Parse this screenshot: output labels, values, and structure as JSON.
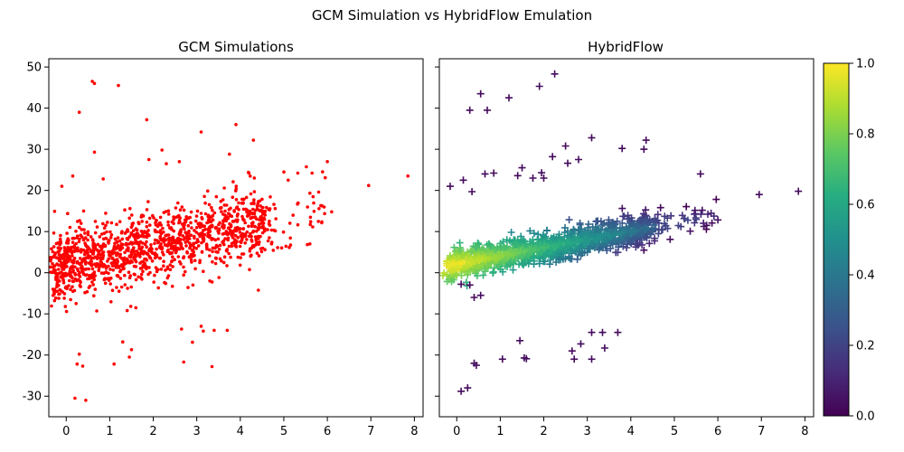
{
  "figure": {
    "suptitle": "GCM Simulation vs HybridFlow Emulation"
  },
  "chart_data": [
    {
      "type": "scatter",
      "title": "GCM Simulations",
      "xlabel": "",
      "ylabel": "",
      "xlim": [
        -0.4,
        8.2
      ],
      "ylim": [
        -35,
        52
      ],
      "xticks": [
        "0",
        "1",
        "2",
        "3",
        "4",
        "5",
        "6",
        "7",
        "8"
      ],
      "yticks": [
        "-30",
        "-20",
        "-10",
        "0",
        "10",
        "20",
        "30",
        "40",
        "50"
      ],
      "xtick_values": [
        0,
        1,
        2,
        3,
        4,
        5,
        6,
        7,
        8
      ],
      "ytick_values": [
        -30,
        -20,
        -10,
        0,
        10,
        20,
        30,
        40,
        50
      ],
      "grid": false,
      "marker": "dot",
      "color": "#ff0000",
      "outliers": [
        [
          0.6,
          46.5
        ],
        [
          0.65,
          46.0
        ],
        [
          1.2,
          45.5
        ],
        [
          0.3,
          39.0
        ],
        [
          1.85,
          37.2
        ],
        [
          3.9,
          36.0
        ],
        [
          3.1,
          34.2
        ],
        [
          4.3,
          32.2
        ],
        [
          2.2,
          29.8
        ],
        [
          0.65,
          29.3
        ],
        [
          3.75,
          28.8
        ],
        [
          1.9,
          27.5
        ],
        [
          2.6,
          27.0
        ],
        [
          6.0,
          27.0
        ],
        [
          2.3,
          26.5
        ],
        [
          5.0,
          24.5
        ],
        [
          4.2,
          24.2
        ],
        [
          5.65,
          24.2
        ],
        [
          0.15,
          23.5
        ],
        [
          7.85,
          23.5
        ],
        [
          0.85,
          22.8
        ],
        [
          5.1,
          22.5
        ],
        [
          6.95,
          21.2
        ],
        [
          -0.1,
          21.0
        ],
        [
          5.8,
          19.6
        ],
        [
          6.1,
          14.8
        ],
        [
          0.4,
          15.0
        ],
        [
          -0.3,
          -5.5
        ],
        [
          0.7,
          -9.3
        ],
        [
          1.4,
          -9.2
        ],
        [
          1.6,
          -8.5
        ],
        [
          2.8,
          -3.6
        ],
        [
          3.3,
          -2.0
        ],
        [
          1.3,
          -16.8
        ],
        [
          3.1,
          -13.0
        ],
        [
          3.15,
          -14.2
        ],
        [
          2.65,
          -13.7
        ],
        [
          3.4,
          -14.0
        ],
        [
          3.7,
          -14.0
        ],
        [
          1.5,
          -18.7
        ],
        [
          2.9,
          -16.9
        ],
        [
          1.45,
          -20.5
        ],
        [
          0.3,
          -19.8
        ],
        [
          0.25,
          -22.2
        ],
        [
          0.38,
          -22.7
        ],
        [
          1.1,
          -22.2
        ],
        [
          2.7,
          -21.7
        ],
        [
          3.35,
          -22.8
        ],
        [
          0.2,
          -30.5
        ],
        [
          0.45,
          -31.0
        ]
      ],
      "cloud": {
        "n": 1300,
        "seed": 7,
        "x_range": [
          -0.3,
          4.6
        ],
        "y_base": 2.5,
        "y_slope": 2.1,
        "y_spread": 4.2,
        "tail_n": 70,
        "tail_x_range": [
          4.0,
          6.0
        ]
      }
    },
    {
      "type": "scatter",
      "title": "HybridFlow",
      "xlabel": "",
      "ylabel": "",
      "xlim": [
        -0.4,
        8.2
      ],
      "ylim": [
        -35,
        52
      ],
      "xticks": [
        "0",
        "1",
        "2",
        "3",
        "4",
        "5",
        "6",
        "7",
        "8"
      ],
      "xtick_values": [
        0,
        1,
        2,
        3,
        4,
        5,
        6,
        7,
        8
      ],
      "ytick_values": [
        -30,
        -20,
        -10,
        0,
        10,
        20,
        30,
        40,
        50
      ],
      "grid": false,
      "marker": "plus",
      "colormap": "viridis",
      "outliers": [
        [
          2.25,
          48.3
        ],
        [
          1.9,
          45.3
        ],
        [
          0.55,
          43.5
        ],
        [
          1.2,
          42.5
        ],
        [
          0.3,
          39.5
        ],
        [
          0.7,
          39.5
        ],
        [
          3.1,
          32.8
        ],
        [
          4.35,
          32.2
        ],
        [
          4.3,
          30.0
        ],
        [
          3.8,
          30.2
        ],
        [
          2.5,
          30.8
        ],
        [
          2.2,
          28.2
        ],
        [
          2.8,
          27.5
        ],
        [
          2.55,
          26.6
        ],
        [
          1.5,
          25.5
        ],
        [
          1.95,
          24.3
        ],
        [
          5.6,
          24.0
        ],
        [
          1.4,
          23.6
        ],
        [
          1.75,
          23.0
        ],
        [
          0.65,
          24.0
        ],
        [
          0.85,
          24.2
        ],
        [
          2.0,
          23.0
        ],
        [
          -0.15,
          21.0
        ],
        [
          0.15,
          22.5
        ],
        [
          0.35,
          19.7
        ],
        [
          6.95,
          19.0
        ],
        [
          7.85,
          19.8
        ],
        [
          4.3,
          5.5
        ],
        [
          0.1,
          -2.8
        ],
        [
          0.3,
          -3.0
        ],
        [
          0.4,
          -6.0
        ],
        [
          0.55,
          -5.5
        ],
        [
          1.45,
          -16.5
        ],
        [
          3.1,
          -14.5
        ],
        [
          3.35,
          -14.5
        ],
        [
          3.7,
          -14.5
        ],
        [
          2.85,
          -17.3
        ],
        [
          2.65,
          -19.0
        ],
        [
          3.4,
          -18.3
        ],
        [
          1.55,
          -20.7
        ],
        [
          1.6,
          -20.9
        ],
        [
          2.7,
          -21.0
        ],
        [
          3.1,
          -21.0
        ],
        [
          1.05,
          -21.0
        ],
        [
          0.45,
          -22.5
        ],
        [
          0.4,
          -22.0
        ],
        [
          0.1,
          -28.8
        ],
        [
          0.25,
          -28.0
        ]
      ],
      "cloud": {
        "n": 1150,
        "seed": 13,
        "x_range": [
          -0.2,
          4.5
        ],
        "y_base": 2.0,
        "y_slope": 2.0,
        "y_spread": 1.8,
        "tail_n": 55,
        "tail_x_range": [
          4.0,
          6.0
        ]
      }
    }
  ],
  "colorbar": {
    "ticks": [
      "0.0",
      "0.2",
      "0.4",
      "0.6",
      "0.8",
      "1.0"
    ],
    "values": [
      0,
      0.2,
      0.4,
      0.6,
      0.8,
      1.0
    ],
    "range": [
      0,
      1
    ]
  }
}
